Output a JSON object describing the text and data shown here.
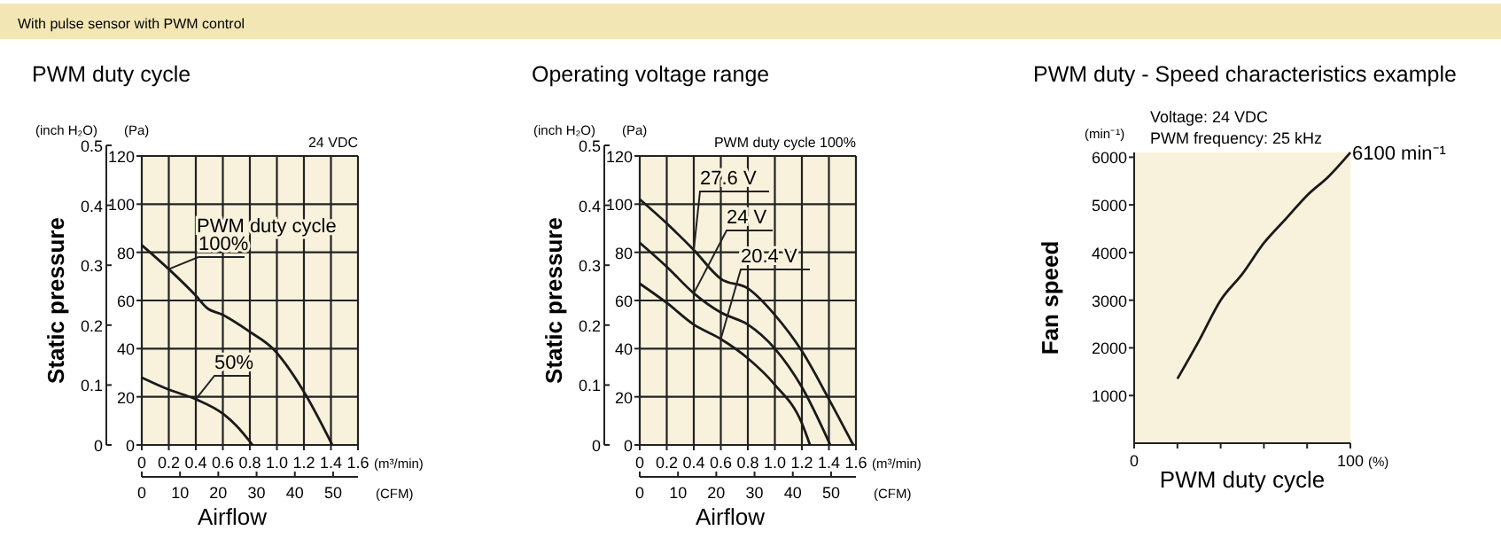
{
  "chart_data": [
    {
      "type": "line",
      "title": "PWM duty cycle",
      "subtitle": "With pulse sensor with PWM control",
      "xlabel": "Airflow",
      "y2label": "Static pressure",
      "legend_title": "PWM duty cycle",
      "grid": true,
      "marker": "none",
      "line_style": "solid",
      "legend": false,
      "annotations": [
        "24 VDC",
        "(inch H₂O)",
        "(Pa)",
        "(m³/min)",
        "(CFM)"
      ],
      "xlim": [
        0,
        1.6
      ],
      "xticks": [
        0,
        0.2,
        0.4,
        0.6,
        0.8,
        {
          "value": 1,
          "label": "1.0"
        },
        1.2,
        1.4,
        1.6
      ],
      "ylim": [
        0,
        120
      ],
      "yticks": [
        0,
        20,
        40,
        60,
        80,
        100,
        120
      ],
      "y2lim": [
        0,
        0.5
      ],
      "y2ticks": [
        0,
        0.1,
        0.2,
        0.3,
        0.4,
        0.5
      ],
      "x2lim": [
        0,
        56.5
      ],
      "x2ticks": [
        0,
        10,
        20,
        30,
        40,
        50
      ],
      "series": [
        {
          "name": "100%",
          "color": "#1a1a1a",
          "x": [
            0,
            0.2,
            0.4,
            0.48,
            0.6,
            0.8,
            0.97,
            1.19,
            1.41
          ],
          "values": [
            83,
            73,
            62,
            57,
            54,
            47,
            40,
            23,
            0
          ]
        },
        {
          "name": "50%",
          "color": "#1a1a1a",
          "x": [
            0,
            0.2,
            0.4,
            0.6,
            0.7,
            0.82
          ],
          "values": [
            28,
            23,
            19,
            13,
            8,
            0
          ]
        }
      ]
    },
    {
      "type": "line",
      "title": "Operating voltage range",
      "xlabel": "Airflow",
      "y2label": "Static pressure",
      "grid": true,
      "marker": "none",
      "line_style": "solid",
      "legend": false,
      "annotations": [
        "PWM duty cycle 100%",
        "(inch H₂O)",
        "(Pa)",
        "(m³/min)",
        "(CFM)"
      ],
      "xlim": [
        0,
        1.6
      ],
      "xticks": [
        0,
        0.2,
        0.4,
        0.6,
        0.8,
        {
          "value": 1,
          "label": "1.0"
        },
        1.2,
        1.4,
        1.6
      ],
      "ylim": [
        0,
        120
      ],
      "yticks": [
        0,
        20,
        40,
        60,
        80,
        100,
        120
      ],
      "y2lim": [
        0,
        0.5
      ],
      "y2ticks": [
        0,
        0.1,
        0.2,
        0.3,
        0.4,
        0.5
      ],
      "x2lim": [
        0,
        56.5
      ],
      "x2ticks": [
        0,
        10,
        20,
        30,
        40,
        50
      ],
      "series": [
        {
          "name": "27.6 V",
          "color": "#1a1a1a",
          "x": [
            0,
            0.2,
            0.4,
            0.6,
            0.8,
            1.0,
            1.2,
            1.4,
            1.58
          ],
          "values": [
            102,
            92,
            81,
            69,
            65,
            54,
            39,
            19,
            0
          ]
        },
        {
          "name": "24 V",
          "color": "#1a1a1a",
          "x": [
            0,
            0.2,
            0.4,
            0.6,
            0.8,
            1.0,
            1.2,
            1.41
          ],
          "values": [
            84,
            74,
            63,
            55,
            50,
            40,
            24,
            0
          ]
        },
        {
          "name": "20.4 V",
          "color": "#1a1a1a",
          "x": [
            0,
            0.2,
            0.4,
            0.6,
            0.8,
            1.0,
            1.2,
            1.26
          ],
          "values": [
            67,
            59,
            50,
            44,
            36,
            25,
            9,
            0
          ]
        }
      ]
    },
    {
      "type": "line",
      "title": "PWM duty - Speed characteristics example",
      "xlabel": "PWM duty cycle",
      "ylabel": "Fan speed",
      "grid": false,
      "marker": "none",
      "line_style": "solid",
      "legend": false,
      "annotations": [
        "(min⁻¹)",
        "Voltage: 24 VDC",
        "PWM frequency: 25 kHz",
        "(%)",
        {
          "text": "6100 min⁻¹",
          "x": 100,
          "y": 6100
        }
      ],
      "xlim": [
        0,
        100
      ],
      "xticks": [
        0,
        {
          "value": 20,
          "label": null
        },
        {
          "value": 40,
          "label": null
        },
        {
          "value": 60,
          "label": null
        },
        {
          "value": 80,
          "label": null
        },
        100
      ],
      "ylim": [
        0,
        6100
      ],
      "yticks": [
        1000,
        2000,
        3000,
        4000,
        5000,
        6000
      ],
      "series": [
        {
          "color": "#1a1a1a",
          "x": [
            20,
            30,
            40,
            50,
            60,
            70,
            80,
            90,
            100
          ],
          "values": [
            1350,
            2150,
            3000,
            3550,
            4200,
            4700,
            5200,
            5600,
            6100
          ]
        }
      ]
    }
  ]
}
